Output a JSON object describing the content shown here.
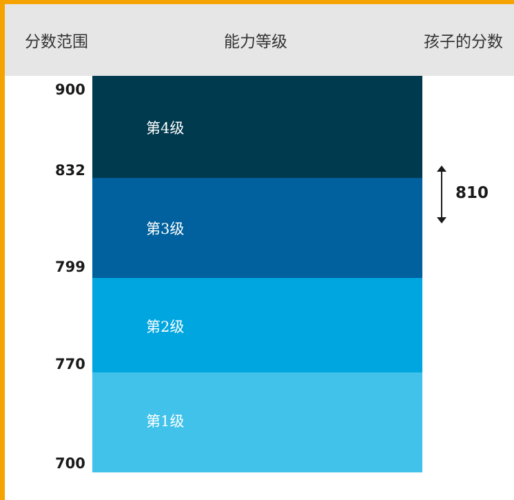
{
  "header": {
    "score_range": "分数范围",
    "ability_level": "能力等级",
    "child_score": "孩子的分数"
  },
  "levels": [
    {
      "label": "第4级",
      "color": "#003a4f"
    },
    {
      "label": "第3级",
      "color": "#00619e"
    },
    {
      "label": "第2级",
      "color": "#00a6e0"
    },
    {
      "label": "第1级",
      "color": "#41c2ea"
    }
  ],
  "ticks": [
    "900",
    "832",
    "799",
    "770",
    "700"
  ],
  "child_score": "810",
  "colors": {
    "border": "#f5a300",
    "header_bg": "#e6e6e6"
  }
}
